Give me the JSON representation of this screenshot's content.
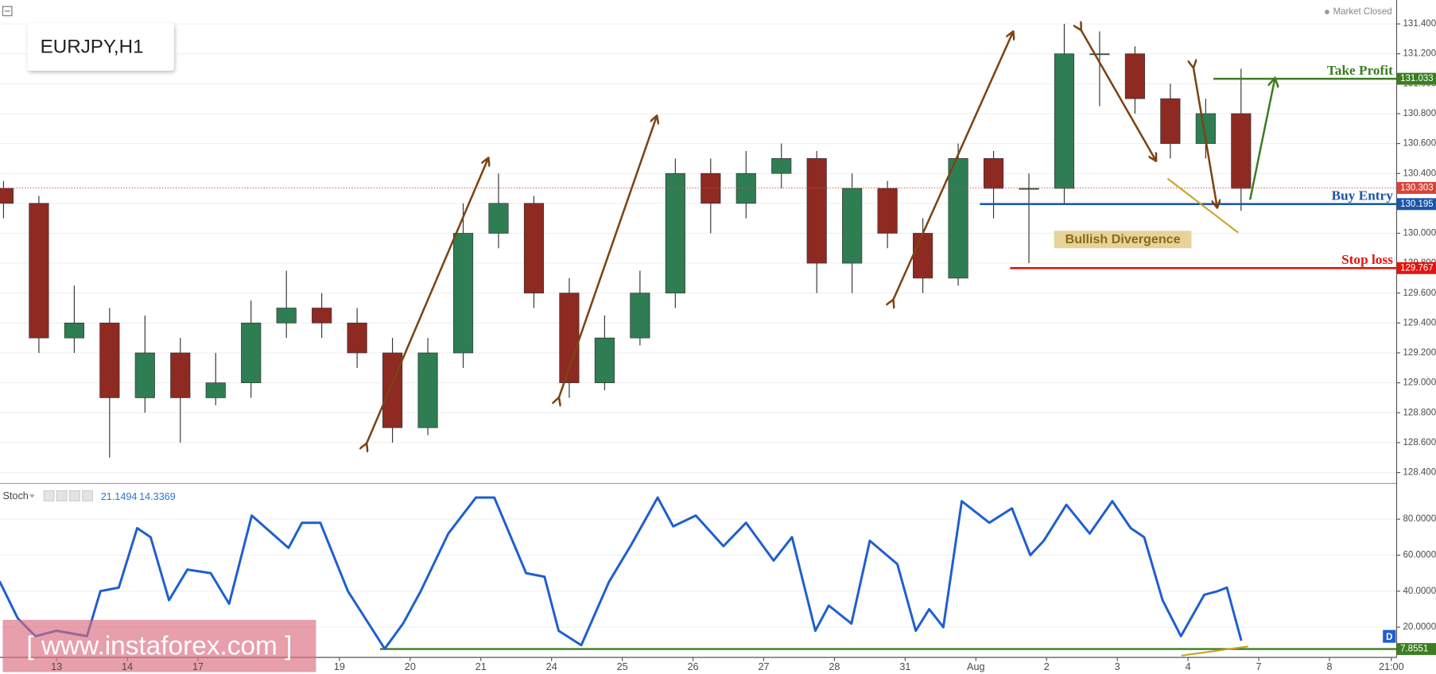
{
  "header": {
    "symbol": "EURJPY,H1",
    "status": "Market Closed"
  },
  "watermark": "[ www.instaforex.com ]",
  "period_marker": "D",
  "chart_data": [
    {
      "type": "candlestick",
      "x": [
        -0.75,
        -0.25,
        0.25,
        0.75,
        1.25,
        1.75,
        2.25,
        2.75,
        3.25,
        3.75,
        4.25,
        4.75,
        5.25,
        5.75,
        6.25,
        6.75,
        7.25,
        7.75,
        8.25,
        8.75,
        9.25,
        9.75,
        10.25,
        10.75,
        11.25,
        11.75,
        12.25,
        12.75,
        13.25,
        13.75,
        14.25,
        14.75,
        15.25,
        15.75,
        16.25,
        16.75
      ],
      "open": [
        130.3,
        130.2,
        129.3,
        129.4,
        128.9,
        129.2,
        128.9,
        129.0,
        129.4,
        129.5,
        129.4,
        129.2,
        128.7,
        129.2,
        130.0,
        130.2,
        129.6,
        129.0,
        129.3,
        129.6,
        130.4,
        130.2,
        130.4,
        130.5,
        129.8,
        130.3,
        130.0,
        129.7,
        130.5,
        130.3,
        130.3,
        131.2,
        131.2,
        130.9,
        130.6,
        130.8
      ],
      "high": [
        130.35,
        130.25,
        129.65,
        129.5,
        129.45,
        129.3,
        129.2,
        129.55,
        129.75,
        129.6,
        129.5,
        129.3,
        129.3,
        130.2,
        130.4,
        130.25,
        129.7,
        129.45,
        129.75,
        130.5,
        130.5,
        130.55,
        130.6,
        130.55,
        130.4,
        130.35,
        130.1,
        130.6,
        130.55,
        130.4,
        131.4,
        131.35,
        131.25,
        131.0,
        130.9,
        131.1
      ],
      "low": [
        130.1,
        129.2,
        129.2,
        128.5,
        128.8,
        128.6,
        128.85,
        128.9,
        129.3,
        129.3,
        129.1,
        128.6,
        128.65,
        129.1,
        129.9,
        129.5,
        128.9,
        128.95,
        129.25,
        129.5,
        130.0,
        130.1,
        130.3,
        129.6,
        129.6,
        129.9,
        129.6,
        129.65,
        130.1,
        129.8,
        130.2,
        130.85,
        130.8,
        130.5,
        130.5,
        130.15
      ],
      "close": [
        130.2,
        129.3,
        129.4,
        128.9,
        129.2,
        128.9,
        129.0,
        129.4,
        129.5,
        129.4,
        129.2,
        128.7,
        129.2,
        130.0,
        130.2,
        129.6,
        129.0,
        129.3,
        129.6,
        130.4,
        130.2,
        130.4,
        130.5,
        129.8,
        130.3,
        130.0,
        129.7,
        130.5,
        130.3,
        130.3,
        131.2,
        131.2,
        130.9,
        130.6,
        130.8,
        130.3
      ],
      "up_color": "#2f7d52",
      "down_color": "#8e2a22",
      "xlim": [
        -0.8,
        18.95
      ],
      "ylim": [
        128.333,
        131.559
      ],
      "yticks": [
        {
          "value": 128.4,
          "label": "128.400"
        },
        {
          "value": 128.6,
          "label": "128.600"
        },
        {
          "value": 128.8,
          "label": "128.800"
        },
        {
          "value": 129.0,
          "label": "129.000"
        },
        {
          "value": 129.2,
          "label": "129.200"
        },
        {
          "value": 129.4,
          "label": "129.400"
        },
        {
          "value": 129.6,
          "label": "129.600"
        },
        {
          "value": 129.8,
          "label": "129.800"
        },
        {
          "value": 130.0,
          "label": "130.000"
        },
        {
          "value": 130.2,
          "label": "130.200"
        },
        {
          "value": 130.4,
          "label": "130.400"
        },
        {
          "value": 130.6,
          "label": "130.600"
        },
        {
          "value": 130.8,
          "label": "130.800"
        },
        {
          "value": 131.0,
          "label": "131.000"
        },
        {
          "value": 131.2,
          "label": "131.200"
        },
        {
          "value": 131.4,
          "label": "131.400"
        }
      ],
      "current_price": 130.303,
      "current_price_color": "#d9443a",
      "levels": [
        {
          "label": "Take Profit",
          "value": 131.033,
          "color": "#3c7d22"
        },
        {
          "label": "Buy Entry",
          "value": 130.195,
          "color": "#1b56a8"
        },
        {
          "label": "Stop loss",
          "value": 129.767,
          "color": "#e3140f"
        }
      ],
      "annotation": "Bullish Divergence"
    },
    {
      "type": "line",
      "title": "Stoch",
      "readouts": [
        21.1494,
        14.3369
      ],
      "x": [
        -0.8,
        -0.55,
        -0.3,
        0,
        0.43,
        0.62,
        0.88,
        1.14,
        1.33,
        1.59,
        1.85,
        2.18,
        2.44,
        2.76,
        3.28,
        3.47,
        3.73,
        4.12,
        4.64,
        4.9,
        5.15,
        5.54,
        5.93,
        6.19,
        6.64,
        6.9,
        7.1,
        7.42,
        7.81,
        8.13,
        8.5,
        8.72,
        9.04,
        9.43,
        9.75,
        10.14,
        10.4,
        10.73,
        10.92,
        11.24,
        11.5,
        11.89,
        12.15,
        12.34,
        12.54,
        12.8,
        13.19,
        13.51,
        13.77,
        13.96,
        14.28,
        14.61,
        14.93,
        15.19,
        15.38,
        15.64,
        15.9,
        16.23,
        16.42,
        16.55,
        16.75
      ],
      "series": [
        {
          "color": "#1f5fcf",
          "values": [
            45,
            25,
            15,
            18,
            15,
            40,
            42,
            75,
            70,
            35,
            52,
            50,
            33,
            82,
            64,
            78,
            78,
            40,
            8,
            22,
            40,
            72,
            92,
            92,
            50,
            48,
            18,
            10,
            45,
            66,
            92,
            76,
            82,
            65,
            78,
            57,
            70,
            18,
            32,
            22,
            68,
            55,
            18,
            30,
            20,
            90,
            78,
            86,
            60,
            68,
            88,
            72,
            90,
            75,
            70,
            35,
            15,
            38,
            40,
            42,
            13
          ]
        }
      ],
      "xlim": [
        -0.8,
        18.95
      ],
      "ylim": [
        3.2,
        98.8
      ],
      "yticks": [
        {
          "value": 20,
          "label": "20.0000"
        },
        {
          "value": 40,
          "label": "40.0000"
        },
        {
          "value": 60,
          "label": "60.0000"
        },
        {
          "value": 80,
          "label": "80.0000"
        }
      ],
      "level": 7.8551,
      "level_color": "#3c7d22",
      "xticks": [
        {
          "value": 0,
          "label": "13"
        },
        {
          "value": 1,
          "label": "14"
        },
        {
          "value": 2,
          "label": "17"
        },
        {
          "value": 4,
          "label": "19"
        },
        {
          "value": 5,
          "label": "20"
        },
        {
          "value": 6,
          "label": "21"
        },
        {
          "value": 7,
          "label": "24"
        },
        {
          "value": 8,
          "label": "25"
        },
        {
          "value": 9,
          "label": "26"
        },
        {
          "value": 10,
          "label": "27"
        },
        {
          "value": 11,
          "label": "28"
        },
        {
          "value": 12,
          "label": "31"
        },
        {
          "value": 13,
          "label": "Aug"
        },
        {
          "value": 14,
          "label": "2"
        },
        {
          "value": 15,
          "label": "3"
        },
        {
          "value": 16,
          "label": "4"
        },
        {
          "value": 17,
          "label": "7"
        },
        {
          "value": 18,
          "label": "8"
        },
        {
          "value": 18.875,
          "label": "21:00"
        }
      ]
    }
  ]
}
